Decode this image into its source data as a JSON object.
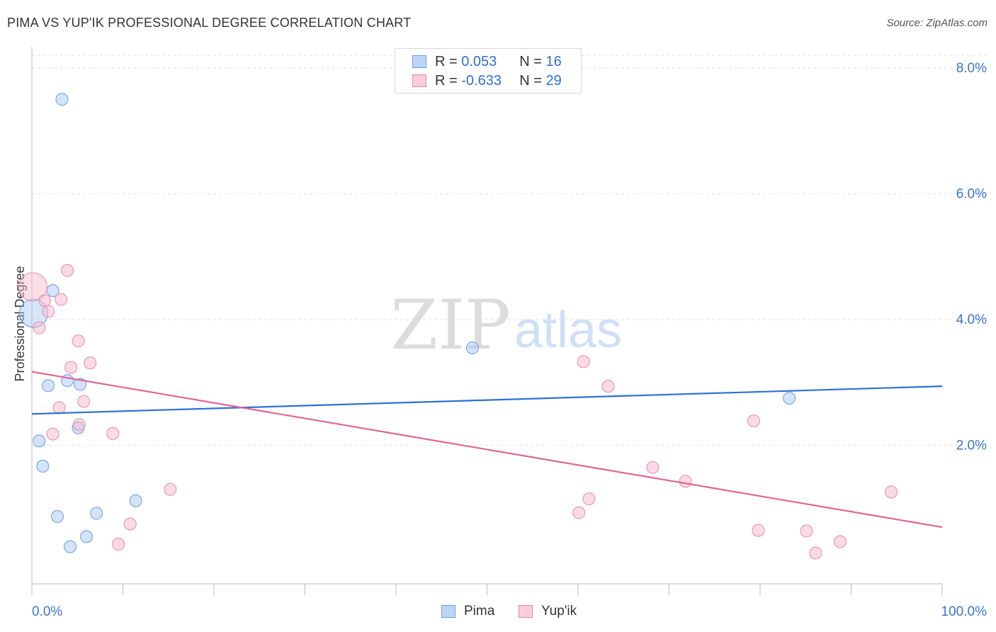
{
  "header": {
    "title": "PIMA VS YUP'IK PROFESSIONAL DEGREE CORRELATION CHART",
    "source": "Source: ZipAtlas.com"
  },
  "watermark": {
    "zip": "ZIP",
    "atlas": "atlas"
  },
  "legend": {
    "rows": [
      {
        "r_label": "R = ",
        "r_value": "0.053",
        "n_label": "N = ",
        "n_value": "16",
        "color": "#a8c8f2"
      },
      {
        "r_label": "R = ",
        "r_value": "-0.633",
        "n_label": "N = ",
        "n_value": "29",
        "color": "#f6b8cb"
      }
    ]
  },
  "bottom_legend": {
    "pima": "Pima",
    "yupik": "Yup'ik"
  },
  "chart_data": {
    "type": "scatter",
    "title": "PIMA VS YUP'IK PROFESSIONAL DEGREE CORRELATION CHART",
    "xlabel": "",
    "ylabel": "Professional Degree",
    "xlim": [
      0,
      100
    ],
    "ylim": [
      -0.2,
      8.2
    ],
    "x_tick_labels": [
      "0.0%",
      "100.0%"
    ],
    "y_ticks": [
      2,
      4,
      6,
      8
    ],
    "y_tick_labels": [
      "2.0%",
      "4.0%",
      "6.0%",
      "8.0%"
    ],
    "legend_position": "top-center",
    "series": [
      {
        "name": "Pima",
        "color": "#a8c8f2",
        "stroke": "#6b9de0",
        "line_color": "#2f6fd6",
        "trend": {
          "x": [
            0,
            100
          ],
          "y": [
            2.5,
            2.94
          ]
        },
        "points": [
          {
            "x": 0.2,
            "y": 4.1,
            "big": true
          },
          {
            "x": 3.3,
            "y": 7.5
          },
          {
            "x": 2.3,
            "y": 4.46
          },
          {
            "x": 1.8,
            "y": 2.95
          },
          {
            "x": 3.9,
            "y": 3.03
          },
          {
            "x": 5.3,
            "y": 2.97
          },
          {
            "x": 0.8,
            "y": 2.07
          },
          {
            "x": 1.2,
            "y": 1.67
          },
          {
            "x": 5.1,
            "y": 2.28
          },
          {
            "x": 11.4,
            "y": 1.12
          },
          {
            "x": 2.8,
            "y": 0.87
          },
          {
            "x": 7.1,
            "y": 0.92
          },
          {
            "x": 6.0,
            "y": 0.55
          },
          {
            "x": 4.2,
            "y": 0.39
          },
          {
            "x": 48.4,
            "y": 3.55
          },
          {
            "x": 83.2,
            "y": 2.75
          }
        ]
      },
      {
        "name": "Yup'ik",
        "color": "#f6b8cb",
        "stroke": "#e889a6",
        "line_color": "#e06592",
        "trend": {
          "x": [
            0,
            100
          ],
          "y": [
            3.17,
            0.7
          ]
        },
        "points": [
          {
            "x": 0.1,
            "y": 4.52,
            "big": true
          },
          {
            "x": 3.9,
            "y": 4.78
          },
          {
            "x": 1.4,
            "y": 4.3
          },
          {
            "x": 3.2,
            "y": 4.32
          },
          {
            "x": 1.8,
            "y": 4.13
          },
          {
            "x": 0.8,
            "y": 3.87
          },
          {
            "x": 5.1,
            "y": 3.66
          },
          {
            "x": 6.4,
            "y": 3.31
          },
          {
            "x": 4.3,
            "y": 3.24
          },
          {
            "x": 5.7,
            "y": 2.7
          },
          {
            "x": 3.0,
            "y": 2.6
          },
          {
            "x": 5.2,
            "y": 2.33
          },
          {
            "x": 2.3,
            "y": 2.18
          },
          {
            "x": 8.9,
            "y": 2.19
          },
          {
            "x": 15.2,
            "y": 1.3
          },
          {
            "x": 10.8,
            "y": 0.75
          },
          {
            "x": 9.5,
            "y": 0.43
          },
          {
            "x": 60.6,
            "y": 3.33
          },
          {
            "x": 63.3,
            "y": 2.94
          },
          {
            "x": 79.3,
            "y": 2.39
          },
          {
            "x": 68.2,
            "y": 1.65
          },
          {
            "x": 71.8,
            "y": 1.43
          },
          {
            "x": 61.2,
            "y": 1.15
          },
          {
            "x": 60.1,
            "y": 0.93
          },
          {
            "x": 94.4,
            "y": 1.26
          },
          {
            "x": 79.8,
            "y": 0.65
          },
          {
            "x": 85.1,
            "y": 0.64
          },
          {
            "x": 88.8,
            "y": 0.47
          },
          {
            "x": 86.1,
            "y": 0.29
          }
        ]
      }
    ]
  }
}
